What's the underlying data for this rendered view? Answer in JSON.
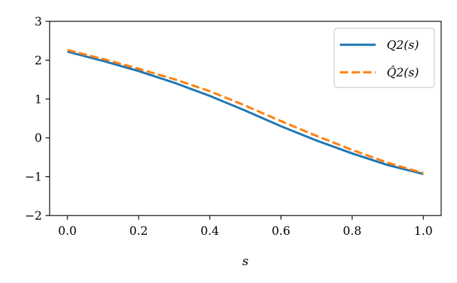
{
  "chart_data": {
    "type": "line",
    "xlabel": "s",
    "ylabel": "",
    "xlim": [
      -0.05,
      1.05
    ],
    "ylim": [
      -2,
      3
    ],
    "xticks": [
      0.0,
      0.2,
      0.4,
      0.6,
      0.8,
      1.0
    ],
    "xtick_labels": [
      "0.0",
      "0.2",
      "0.4",
      "0.6",
      "0.8",
      "1.0"
    ],
    "yticks": [
      -2,
      -1,
      0,
      1,
      2,
      3
    ],
    "ytick_labels": [
      "−2",
      "−1",
      "0",
      "1",
      "2",
      "3"
    ],
    "grid": false,
    "legend_position": "top-right",
    "series": [
      {
        "name": "Q2(s)",
        "color": "#1f77b4",
        "style": "solid",
        "x": [
          0.0,
          0.1,
          0.2,
          0.3,
          0.4,
          0.5,
          0.6,
          0.7,
          0.8,
          0.9,
          1.0
        ],
        "y": [
          2.22,
          1.98,
          1.72,
          1.42,
          1.08,
          0.7,
          0.3,
          -0.07,
          -0.4,
          -0.7,
          -0.93
        ]
      },
      {
        "name": "Q̂2(s)",
        "color": "#ff7f0e",
        "style": "dashed",
        "x": [
          0.0,
          0.1,
          0.2,
          0.3,
          0.4,
          0.5,
          0.6,
          0.7,
          0.8,
          0.9,
          1.0
        ],
        "y": [
          2.26,
          2.03,
          1.78,
          1.51,
          1.2,
          0.83,
          0.43,
          0.05,
          -0.31,
          -0.64,
          -0.91
        ]
      }
    ]
  }
}
